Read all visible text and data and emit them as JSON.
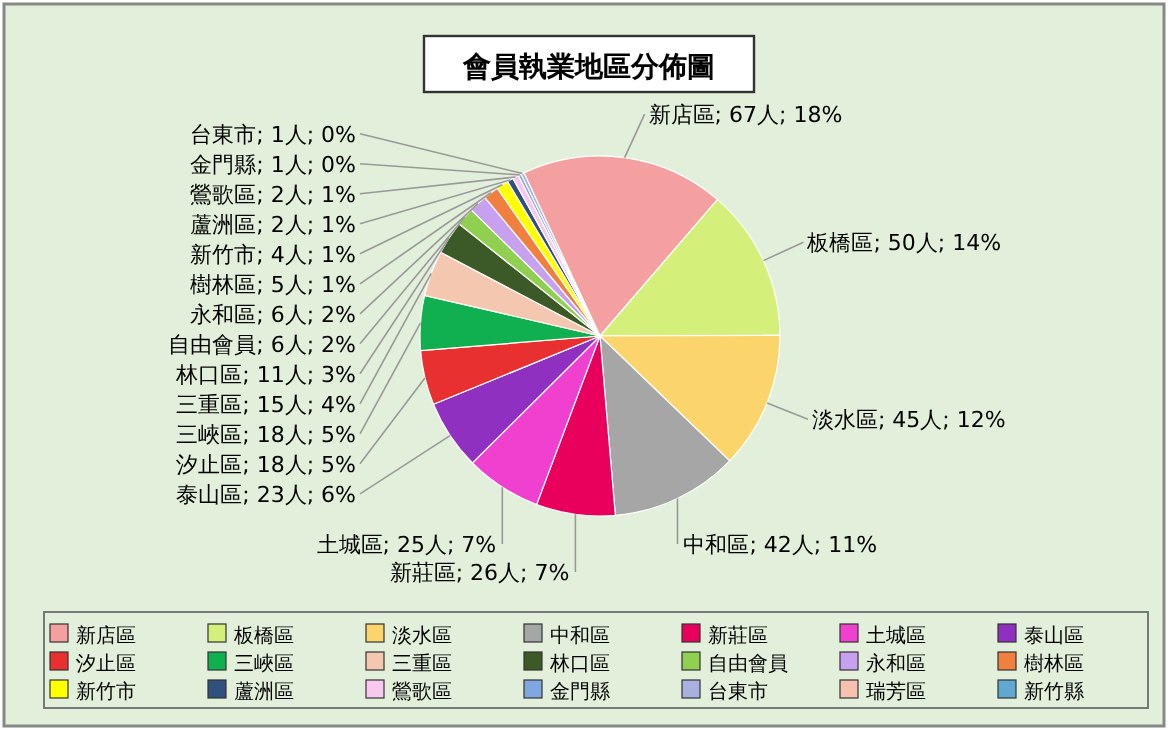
{
  "chart_data": {
    "type": "pie",
    "title": "會員執業地區分佈圖",
    "categories": [
      "新店區",
      "板橋區",
      "淡水區",
      "中和區",
      "新莊區",
      "土城區",
      "泰山區",
      "汐止區",
      "三峽區",
      "三重區",
      "林口區",
      "自由會員",
      "永和區",
      "樹林區",
      "新竹市",
      "蘆洲區",
      "鶯歌區",
      "金門縣",
      "台東市",
      "瑞芳區",
      "新竹縣"
    ],
    "values": [
      67,
      50,
      45,
      42,
      26,
      25,
      23,
      18,
      18,
      15,
      11,
      6,
      6,
      5,
      4,
      2,
      2,
      1,
      1,
      0,
      0
    ],
    "value_labels": [
      "新店區; 67人; 18%",
      "板橋區; 50人; 14%",
      "淡水區; 45人; 12%",
      "中和區; 42人; 11%",
      "新莊區; 26人; 7%",
      "土城區; 25人; 7%",
      "泰山區; 23人; 6%",
      "汐止區; 18人; 5%",
      "三峽區; 18人; 5%",
      "三重區; 15人; 4%",
      "林口區; 11人; 3%",
      "自由會員; 6人; 2%",
      "永和區; 6人; 2%",
      "樹林區; 5人; 1%",
      "新竹市; 4人; 1%",
      "蘆洲區; 2人; 1%",
      "鶯歌區; 2人; 1%",
      "金門縣; 1人; 0%",
      "台東市; 1人; 0%",
      null,
      null
    ],
    "colors": [
      "#f4a0a0",
      "#d4f07a",
      "#fcd46c",
      "#a6a6a6",
      "#e8005c",
      "#f040d0",
      "#9030c0",
      "#e83030",
      "#10b050",
      "#f4c8b0",
      "#3c5a28",
      "#90d050",
      "#c8a0f0",
      "#f08040",
      "#ffff00",
      "#305080",
      "#f8c8f0",
      "#80a8e0",
      "#a8b0e0",
      "#f8c0b0",
      "#60a8d0"
    ],
    "legend": "bottom"
  }
}
